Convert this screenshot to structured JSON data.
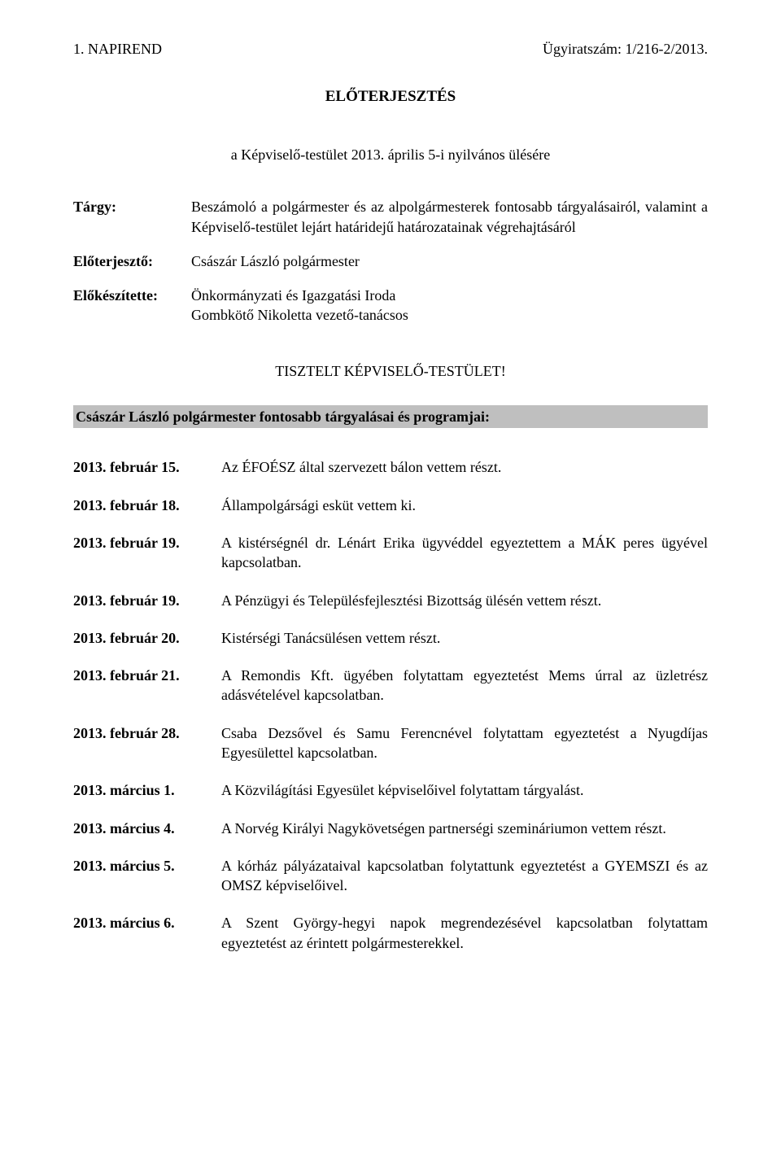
{
  "header": {
    "left": "1.  NAPIREND",
    "right": "Ügyiratszám: 1/216-2/2013."
  },
  "title": "ELŐTERJESZTÉS",
  "session": "a Képviselő-testület 2013. április 5-i nyilvános ülésére",
  "meta": {
    "subject_label": "Tárgy:",
    "subject_value": "Beszámoló a polgármester és az alpolgármesterek fontosabb tárgyalásairól, valamint a Képviselő-testület lejárt határidejű határozatainak végrehajtásáról",
    "submitter_label": "Előterjesztő:",
    "submitter_value": "Császár László polgármester",
    "preparedby_label": "Előkészítette:",
    "preparedby_value": "Önkormányzati és Igazgatási Iroda\nGombkötő Nikoletta vezető-tanácsos"
  },
  "salutation": "TISZTELT KÉPVISELŐ-TESTÜLET!",
  "section_heading": "Császár László polgármester fontosabb tárgyalásai és programjai:",
  "entries": [
    {
      "date": "2013. február 15.",
      "text": "Az ÉFOÉSZ által szervezett bálon vettem részt."
    },
    {
      "date": "2013. február 18.",
      "text": "Állampolgársági esküt vettem ki."
    },
    {
      "date": "2013. február 19.",
      "text": "A kistérségnél dr. Lénárt Erika ügyvéddel egyeztettem a MÁK peres ügyével kapcsolatban."
    },
    {
      "date": "2013. február 19.",
      "text": "A Pénzügyi és Településfejlesztési Bizottság ülésén vettem részt."
    },
    {
      "date": "2013. február 20.",
      "text": "Kistérségi Tanácsülésen vettem részt."
    },
    {
      "date": "2013. február 21.",
      "text": "A Remondis Kft. ügyében folytattam egyeztetést Mems úrral az üzletrész adásvételével kapcsolatban."
    },
    {
      "date": "2013. február 28.",
      "text": "Csaba Dezsővel és Samu Ferencnével folytattam egyeztetést a Nyugdíjas Egyesülettel kapcsolatban."
    },
    {
      "date": "2013. március 1.",
      "text": "A Közvilágítási Egyesület képviselőivel folytattam tárgyalást."
    },
    {
      "date": "2013. március 4.",
      "text": "A Norvég Királyi Nagykövetségen partnerségi szemináriumon vettem részt."
    },
    {
      "date": "2013. március 5.",
      "text": "A kórház pályázataival kapcsolatban folytattunk egyeztetést a GYEMSZI és az OMSZ képviselőivel."
    },
    {
      "date": "2013. március 6.",
      "text": "A Szent György-hegyi napok megrendezésével kapcsolatban folytattam egyeztetést az érintett polgármesterekkel."
    }
  ]
}
